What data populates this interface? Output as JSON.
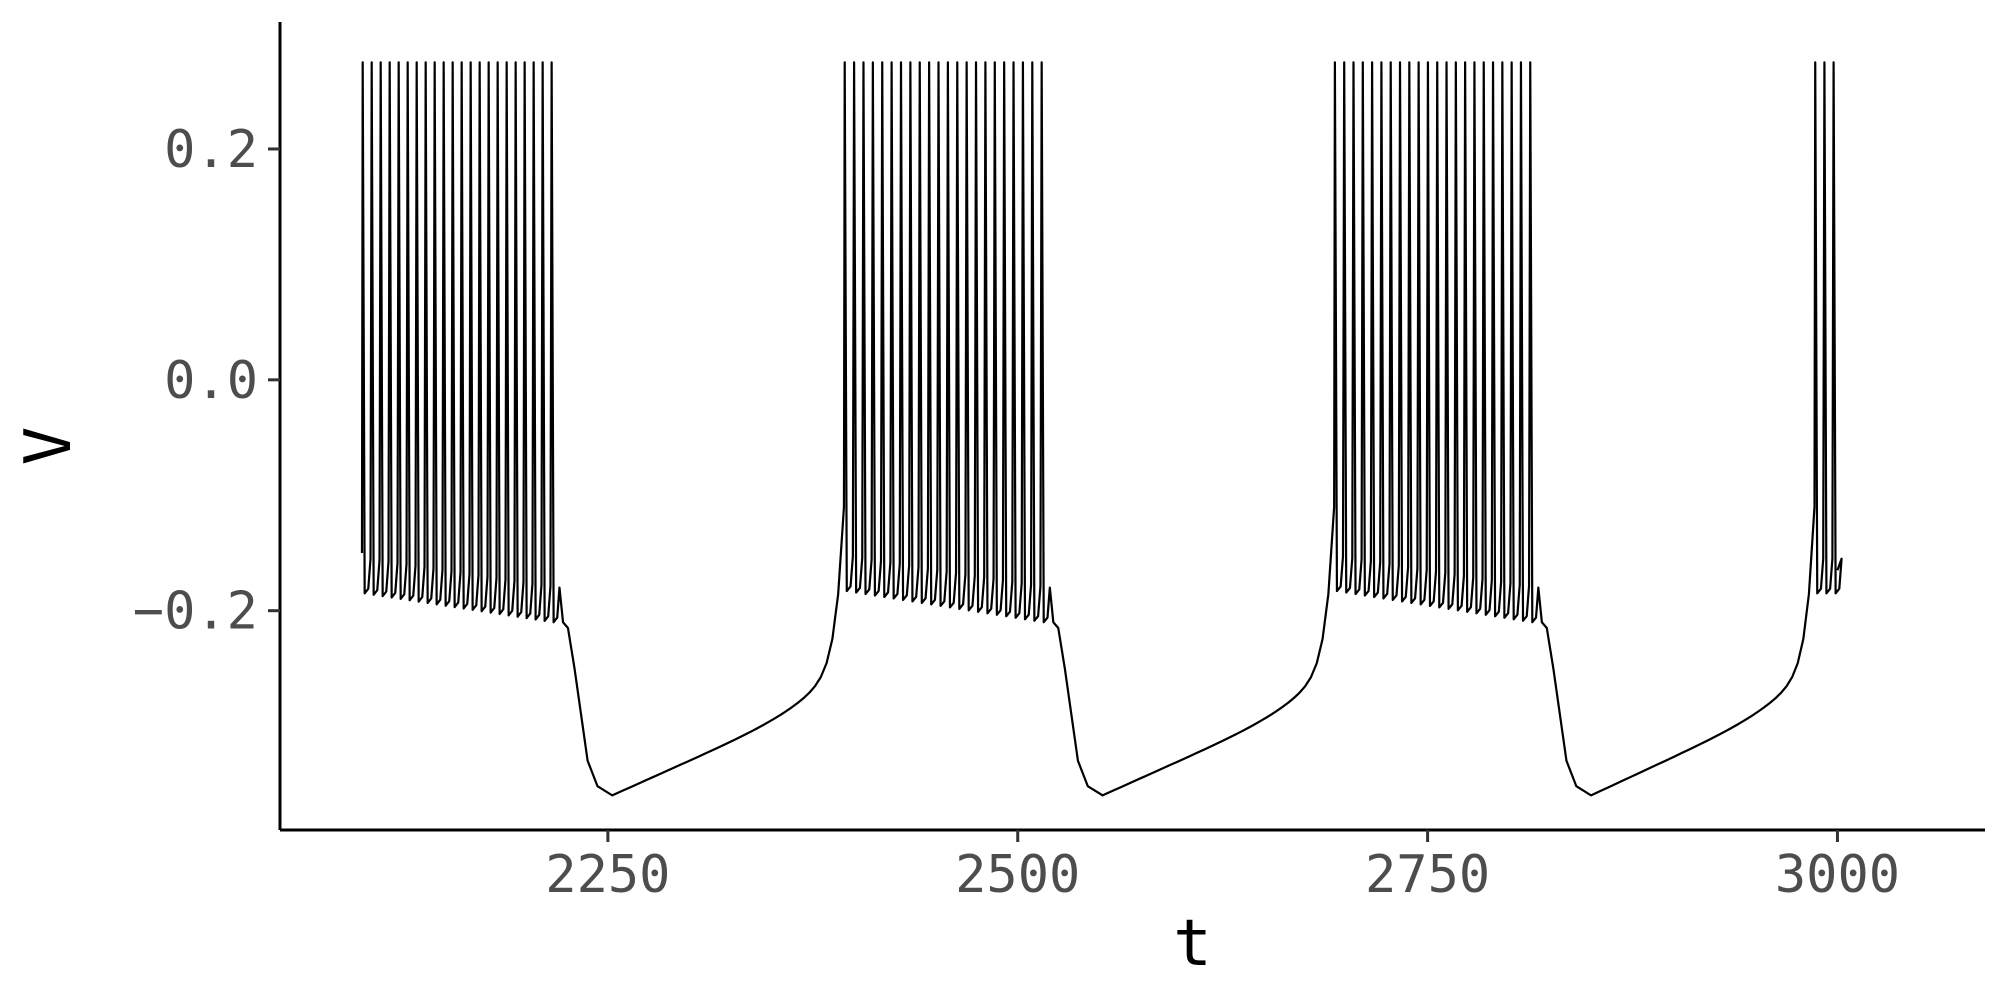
{
  "chart_data": {
    "type": "line",
    "title": "",
    "xlabel": "t",
    "ylabel": "V",
    "xlim": [
      2050,
      3090
    ],
    "ylim": [
      -0.39,
      0.31
    ],
    "x_ticks": [
      2250,
      2500,
      2750,
      3000
    ],
    "x_tick_labels": [
      "2250",
      "2500",
      "2750",
      "3000"
    ],
    "y_ticks": [
      0.2,
      0.0,
      -0.2
    ],
    "y_tick_labels": [
      "0.2",
      "0.0",
      "-0.2"
    ],
    "grid": false,
    "legend": "none",
    "line_color": "#000000",
    "bursts": [
      {
        "start": 2100,
        "end": 2218,
        "spikes": 22,
        "trough_start": -0.185,
        "trough_end": -0.21
      },
      {
        "start": 2394,
        "end": 2517,
        "spikes": 22,
        "trough_start": -0.183,
        "trough_end": -0.21
      },
      {
        "start": 2693,
        "end": 2815,
        "spikes": 22,
        "trough_start": -0.183,
        "trough_end": -0.21
      },
      {
        "start": 2986,
        "end": 3000,
        "spikes": 3,
        "trough_start": -0.185,
        "trough_end": -0.185
      }
    ],
    "spike_peak": 0.275,
    "plateau": -0.21,
    "min_V": -0.36,
    "min_t_offsets": 33,
    "series": [
      {
        "values_description_free": true,
        "t_start": 2100,
        "t_end": 3000
      }
    ]
  }
}
